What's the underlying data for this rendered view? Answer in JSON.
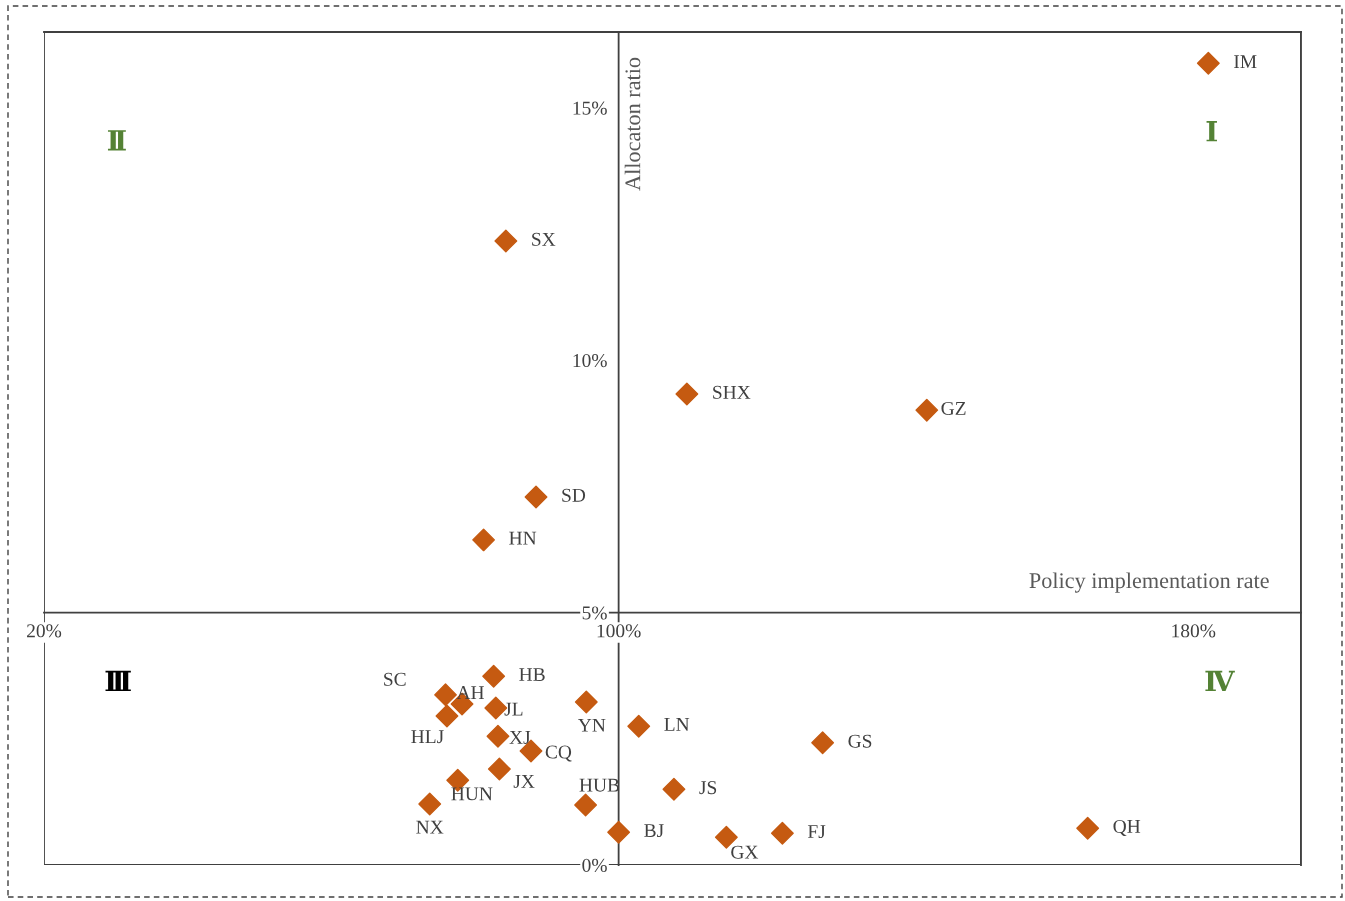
{
  "chart_data": {
    "type": "scatter",
    "xlabel": "Policy implementation rate",
    "ylabel": "Allocaton ratio",
    "xlim": [
      20,
      195
    ],
    "ylim": [
      0,
      16.5
    ],
    "xticks": [
      {
        "value": 20,
        "label": "20%"
      },
      {
        "value": 100,
        "label": "100%"
      },
      {
        "value": 180,
        "label": "180%"
      }
    ],
    "yticks": [
      {
        "value": 0,
        "label": "0%"
      },
      {
        "value": 5,
        "label": "5%"
      },
      {
        "value": 10,
        "label": "10%"
      },
      {
        "value": 15,
        "label": "15%"
      }
    ],
    "grid": false,
    "legend": false,
    "marker": "diamond",
    "series": [
      {
        "color": "#c55a11",
        "x": [
          182.1,
          84.3,
          109.5,
          142.9,
          88.5,
          81.2,
          82.6,
          75.9,
          78.2,
          76.1,
          82.9,
          95.5,
          102.8,
          83.2,
          87.8,
          128.4,
          83.4,
          77.6,
          107.7,
          73.7,
          95.4,
          100.0,
          115.0,
          122.8,
          165.3
        ],
        "values": [
          15.88,
          12.36,
          9.33,
          9.01,
          7.29,
          6.44,
          3.74,
          3.37,
          3.19,
          2.95,
          3.11,
          3.23,
          2.75,
          2.55,
          2.26,
          2.42,
          1.9,
          1.68,
          1.5,
          1.21,
          1.19,
          0.65,
          0.55,
          0.63,
          0.73
        ],
        "value_labels": [
          "IM",
          "SX",
          "SHX",
          "GZ",
          "SD",
          "HN",
          "HB",
          "SC",
          "AH",
          "HLJ",
          "JL",
          "YN",
          "LN",
          "XJ",
          "CQ",
          "GS",
          "JX",
          "HUN",
          "JS",
          "NX",
          "HUB",
          "BJ",
          "GX",
          "FJ",
          "QH"
        ]
      }
    ],
    "annotations": [
      "Ⅰ",
      "Ⅱ",
      "Ⅲ",
      "Ⅳ"
    ]
  }
}
